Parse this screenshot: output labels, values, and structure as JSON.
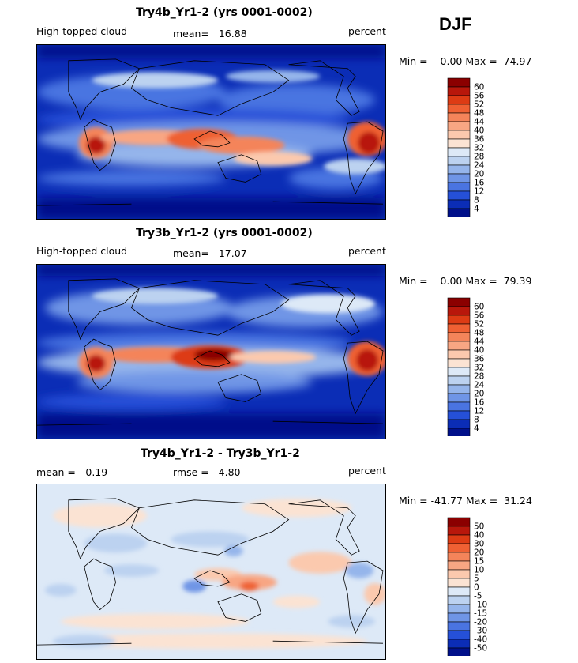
{
  "season": "DJF",
  "panels": [
    {
      "title": "Try4b_Yr1-2 (yrs 0001-0002)",
      "variable": "High-topped cloud",
      "stat1_label": "mean=",
      "stat1_value": "16.88",
      "units": "percent",
      "min_label": "Min =",
      "min_value": "0.00",
      "max_label": "Max =",
      "max_value": "74.97",
      "colorbar": {
        "levels": [
          "60",
          "56",
          "52",
          "48",
          "44",
          "40",
          "36",
          "32",
          "28",
          "24",
          "20",
          "16",
          "12",
          "8",
          "4"
        ],
        "colors": [
          "#8b0000",
          "#b8170b",
          "#dd3b14",
          "#ef6033",
          "#f4845a",
          "#f8a683",
          "#fbc9ae",
          "#fbe3d3",
          "#dde9f7",
          "#bcd2f0",
          "#95b5eb",
          "#6f95e6",
          "#4a74e1",
          "#2550d8",
          "#0b2db6",
          "#00108a"
        ]
      }
    },
    {
      "title": "Try3b_Yr1-2 (yrs 0001-0002)",
      "variable": "High-topped cloud",
      "stat1_label": "mean=",
      "stat1_value": "17.07",
      "units": "percent",
      "min_label": "Min =",
      "min_value": "0.00",
      "max_label": "Max =",
      "max_value": "79.39",
      "colorbar": {
        "levels": [
          "60",
          "56",
          "52",
          "48",
          "44",
          "40",
          "36",
          "32",
          "28",
          "24",
          "20",
          "16",
          "12",
          "8",
          "4"
        ],
        "colors": [
          "#8b0000",
          "#b8170b",
          "#dd3b14",
          "#ef6033",
          "#f4845a",
          "#f8a683",
          "#fbc9ae",
          "#fbe3d3",
          "#dde9f7",
          "#bcd2f0",
          "#95b5eb",
          "#6f95e6",
          "#4a74e1",
          "#2550d8",
          "#0b2db6",
          "#00108a"
        ]
      }
    },
    {
      "title": "Try4b_Yr1-2 - Try3b_Yr1-2",
      "variable": "",
      "stat1_label": "mean =",
      "stat1_value": "-0.19",
      "stat2_label": "rmse =",
      "stat2_value": "4.80",
      "units": "percent",
      "min_label": "Min =",
      "min_value": "-41.77",
      "max_label": "Max =",
      "max_value": "31.24",
      "colorbar": {
        "levels": [
          "50",
          "40",
          "30",
          "20",
          "15",
          "10",
          "5",
          "0",
          "-5",
          "-10",
          "-15",
          "-20",
          "-30",
          "-40",
          "-50"
        ],
        "colors": [
          "#8b0000",
          "#b8170b",
          "#dd3b14",
          "#ef6033",
          "#f4845a",
          "#f8a683",
          "#fbc9ae",
          "#fbe3d3",
          "#dde9f7",
          "#bcd2f0",
          "#95b5eb",
          "#6f95e6",
          "#4a74e1",
          "#2550d8",
          "#0b2db6",
          "#00108a"
        ]
      }
    }
  ],
  "chart_data": [
    {
      "type": "heatmap",
      "title": "Try4b_Yr1-2 (yrs 0001-0002)",
      "variable": "High-topped cloud",
      "units": "percent",
      "mean": 16.88,
      "min": 0.0,
      "max": 74.97,
      "contour_levels": [
        4,
        8,
        12,
        16,
        20,
        24,
        28,
        32,
        36,
        40,
        44,
        48,
        52,
        56,
        60
      ],
      "region": "global lat-lon map"
    },
    {
      "type": "heatmap",
      "title": "Try3b_Yr1-2 (yrs 0001-0002)",
      "variable": "High-topped cloud",
      "units": "percent",
      "mean": 17.07,
      "min": 0.0,
      "max": 79.39,
      "contour_levels": [
        4,
        8,
        12,
        16,
        20,
        24,
        28,
        32,
        36,
        40,
        44,
        48,
        52,
        56,
        60
      ],
      "region": "global lat-lon map"
    },
    {
      "type": "heatmap",
      "title": "Try4b_Yr1-2 - Try3b_Yr1-2",
      "units": "percent",
      "mean": -0.19,
      "rmse": 4.8,
      "min": -41.77,
      "max": 31.24,
      "contour_levels": [
        -50,
        -40,
        -30,
        -20,
        -15,
        -10,
        -5,
        0,
        5,
        10,
        15,
        20,
        30,
        40,
        50
      ],
      "region": "global lat-lon map"
    }
  ]
}
